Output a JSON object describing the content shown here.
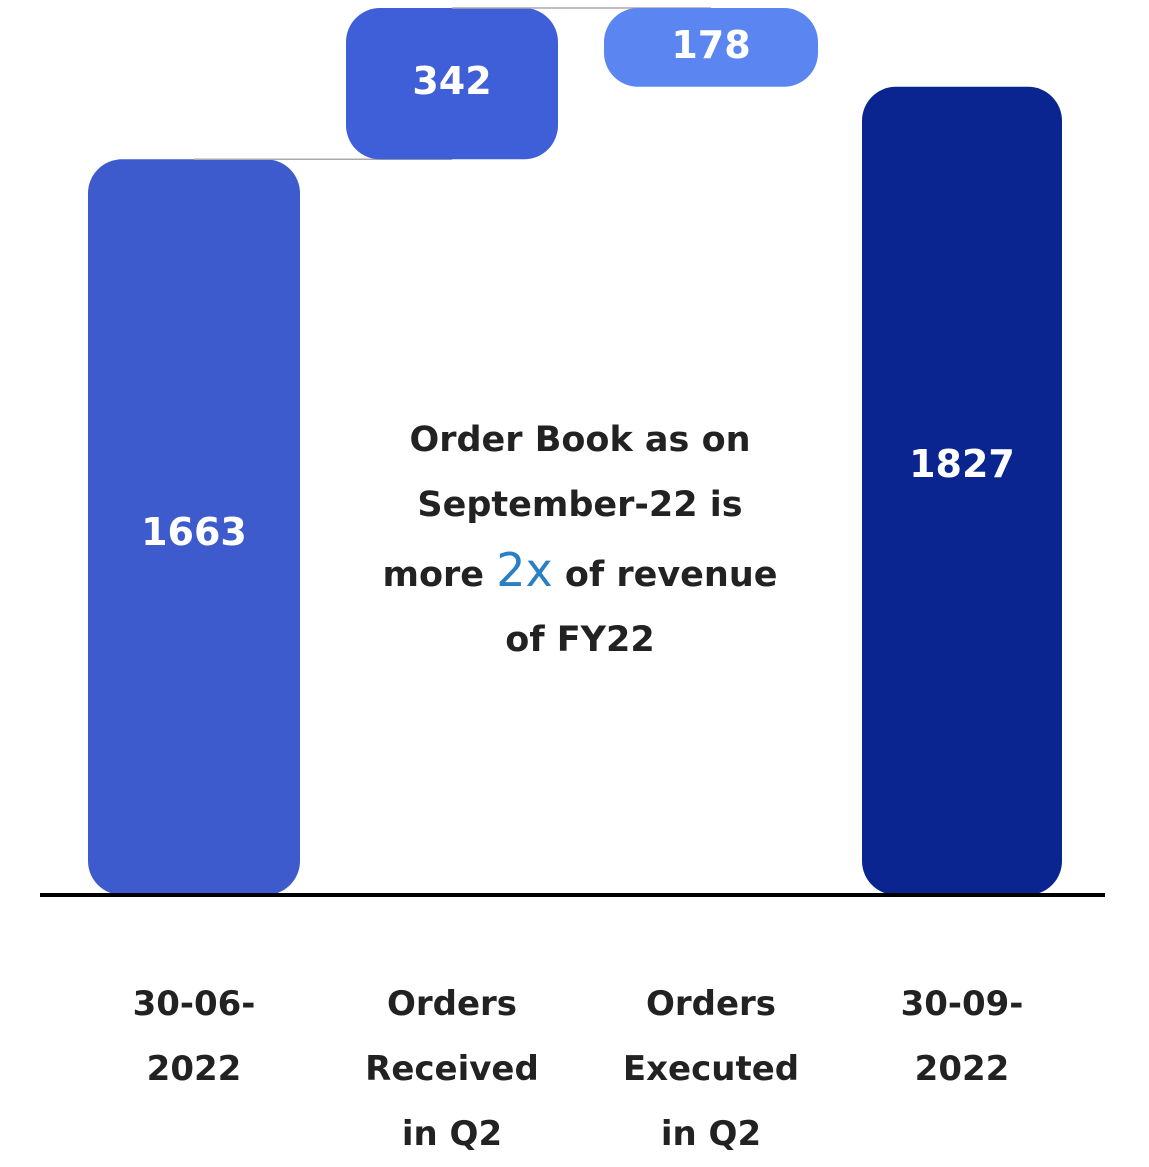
{
  "chart_data": {
    "type": "waterfall",
    "categories": [
      "30-06-2022",
      "Orders Received in Q2",
      "Orders Executed in Q2",
      "30-09-2022"
    ],
    "values": [
      1663,
      342,
      178,
      1827
    ],
    "measure": [
      "total",
      "increase",
      "decrease",
      "total"
    ],
    "colors": [
      "#3d5bcc",
      "#3f5fd8",
      "#5b86f1",
      "#0a2590"
    ],
    "annotation": {
      "before": "Order Book as on September-22 is more ",
      "highlight": "2x",
      "after": " of revenue of FY22",
      "highlight_color": "#2a80c4"
    }
  }
}
